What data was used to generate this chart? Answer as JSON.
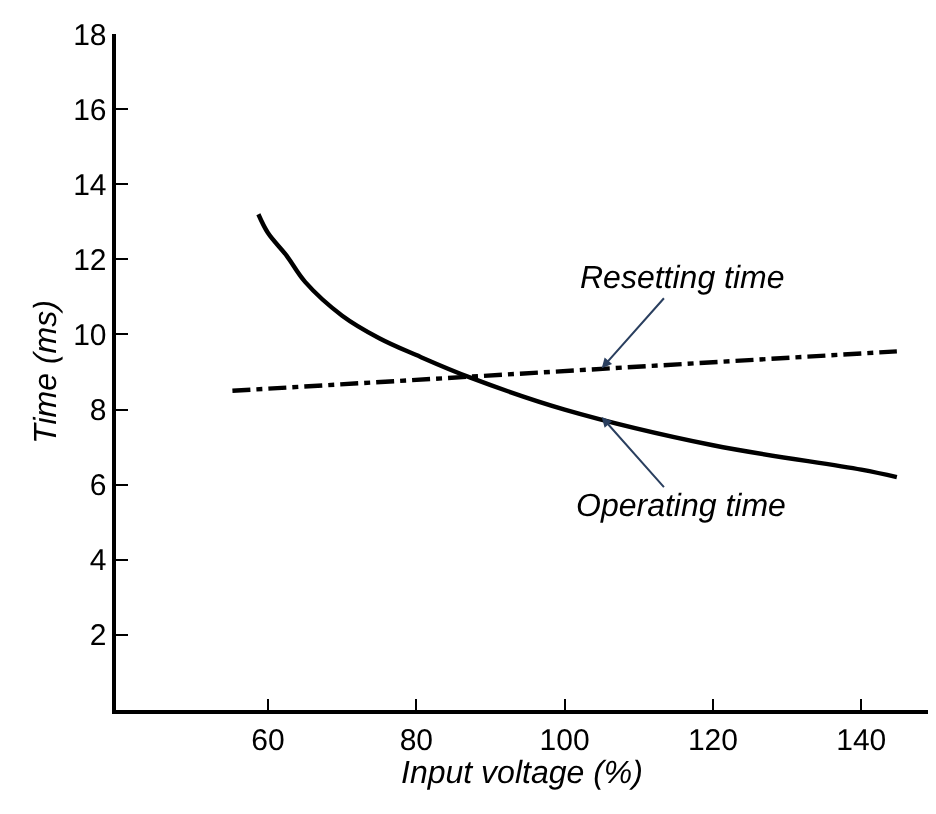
{
  "chart_data": {
    "type": "line",
    "xlabel": "Input voltage (%)",
    "ylabel": "Time (ms)",
    "xlim": [
      39.5,
      149
    ],
    "ylim": [
      0,
      18
    ],
    "xticks": [
      60,
      80,
      100,
      120,
      140
    ],
    "yticks": [
      2,
      4,
      6,
      8,
      10,
      12,
      14,
      16,
      18
    ],
    "marker": "none",
    "series": [
      {
        "color": "#000000",
        "line_style": "solid",
        "x": [
          58.7,
          60,
          62.5,
          65,
          70,
          75,
          80,
          87.3,
          100,
          120,
          140,
          144.8
        ],
        "values": [
          13.2,
          12.7,
          12.1,
          11.4,
          10.5,
          9.9,
          9.45,
          8.85,
          8.0,
          7.05,
          6.4,
          6.2
        ]
      },
      {
        "color": "#000000",
        "line_style": "dashed",
        "x": [
          55.2,
          144.8
        ],
        "values": [
          8.5,
          9.55
        ]
      }
    ],
    "annotations": [
      {
        "text": "Resetting time",
        "x": 105,
        "y": 9.1
      },
      {
        "text": "Operating time",
        "x": 105,
        "y": 7.8
      }
    ]
  }
}
